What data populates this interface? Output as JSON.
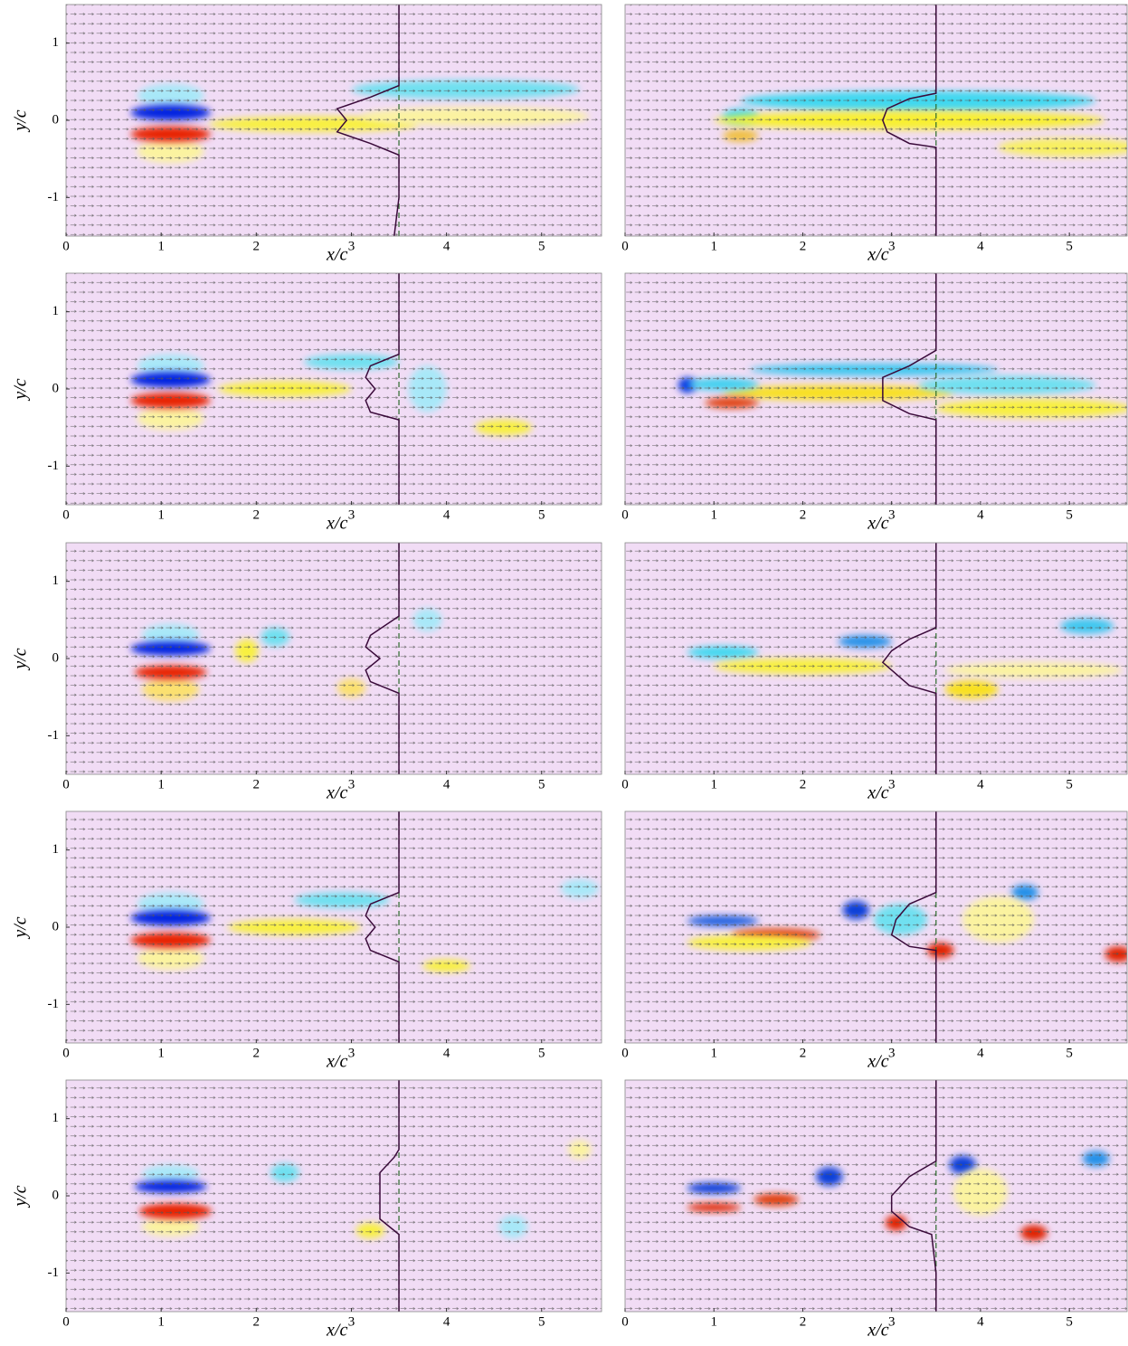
{
  "chart_data": [
    {
      "type": "flow",
      "xlabel": "x/c",
      "ylabel": "y/c",
      "xlim": [
        0,
        5.63
      ],
      "ylim": [
        -1.5,
        1.5
      ],
      "xticks": [
        0,
        1,
        2,
        3,
        4,
        5
      ],
      "yticks": [
        -1,
        0,
        1
      ],
      "reference_x": 3.5,
      "profile": {
        "x": [
          3.45,
          3.5,
          3.5,
          3.2,
          2.85,
          2.95,
          2.85,
          3.2,
          3.5,
          3.5
        ],
        "y": [
          -1.5,
          -1,
          -0.45,
          -0.3,
          -0.15,
          0,
          0.15,
          0.3,
          0.45,
          1.5
        ]
      },
      "blobs": [
        {
          "x": 1.1,
          "y": 0.32,
          "rx": 0.35,
          "ry": 0.15,
          "color": "#a8e8f8"
        },
        {
          "x": 1.1,
          "y": -0.4,
          "rx": 0.35,
          "ry": 0.15,
          "color": "#fbf3a0"
        },
        {
          "x": 2.6,
          "y": -0.05,
          "rx": 1.1,
          "ry": 0.1,
          "color": "#f8f040"
        },
        {
          "x": 4.2,
          "y": 0.4,
          "rx": 1.2,
          "ry": 0.12,
          "color": "#70e0f0"
        },
        {
          "x": 4.3,
          "y": 0.05,
          "rx": 1.2,
          "ry": 0.12,
          "color": "#fbf3a0"
        },
        {
          "x": 1.1,
          "y": 0.1,
          "rx": 0.42,
          "ry": 0.1,
          "color": "#0020e0"
        },
        {
          "x": 1.1,
          "y": -0.18,
          "rx": 0.42,
          "ry": 0.1,
          "color": "#e82000"
        }
      ]
    },
    {
      "type": "flow",
      "xlabel": "x/c",
      "xlim": [
        0,
        5.65
      ],
      "ylim": [
        -1.5,
        1.5
      ],
      "xticks": [
        0,
        1,
        2,
        3,
        4,
        5
      ],
      "reference_x": 3.5,
      "profile": {
        "x": [
          3.5,
          3.5,
          3.5,
          3.2,
          2.95,
          2.9,
          2.95,
          3.2,
          3.5,
          3.5
        ],
        "y": [
          -1.5,
          -1,
          -0.35,
          -0.3,
          -0.15,
          0,
          0.15,
          0.28,
          0.35,
          1.5
        ]
      },
      "blobs": [
        {
          "x": 1.3,
          "y": 0.05,
          "rx": 0.2,
          "ry": 0.1,
          "color": "#40d8f0"
        },
        {
          "x": 1.3,
          "y": -0.2,
          "rx": 0.2,
          "ry": 0.08,
          "color": "#f0c040"
        },
        {
          "x": 3.3,
          "y": 0.25,
          "rx": 2.0,
          "ry": 0.13,
          "color": "#40d8f0"
        },
        {
          "x": 3.2,
          "y": 0,
          "rx": 2.2,
          "ry": 0.12,
          "color": "#f8f030"
        },
        {
          "x": 5,
          "y": -0.35,
          "rx": 0.8,
          "ry": 0.12,
          "color": "#f8f060"
        }
      ]
    },
    {
      "type": "flow",
      "xlabel": "x/c",
      "ylabel": "y/c",
      "xlim": [
        0,
        5.63
      ],
      "ylim": [
        -1.5,
        1.5
      ],
      "xticks": [
        0,
        1,
        2,
        3,
        4,
        5
      ],
      "yticks": [
        -1,
        0,
        1
      ],
      "reference_x": 3.5,
      "profile": {
        "x": [
          3.5,
          3.5,
          3.5,
          3.2,
          3.15,
          3.25,
          3.15,
          3.2,
          3.5,
          3.5
        ],
        "y": [
          -1.5,
          -1,
          -0.4,
          -0.3,
          -0.15,
          0,
          0.15,
          0.3,
          0.45,
          1.5
        ]
      },
      "blobs": [
        {
          "x": 1.1,
          "y": 0.3,
          "rx": 0.35,
          "ry": 0.15,
          "color": "#a8e8f8"
        },
        {
          "x": 1.1,
          "y": -0.38,
          "rx": 0.35,
          "ry": 0.15,
          "color": "#fbf3a0"
        },
        {
          "x": 2.3,
          "y": 0,
          "rx": 0.7,
          "ry": 0.1,
          "color": "#f8f040"
        },
        {
          "x": 3.0,
          "y": 0.35,
          "rx": 0.5,
          "ry": 0.1,
          "color": "#70e0f0"
        },
        {
          "x": 3.8,
          "y": 0,
          "rx": 0.2,
          "ry": 0.3,
          "color": "#a8e8f8"
        },
        {
          "x": 4.6,
          "y": -0.5,
          "rx": 0.3,
          "ry": 0.1,
          "color": "#f8f040"
        },
        {
          "x": 1.1,
          "y": 0.12,
          "rx": 0.42,
          "ry": 0.1,
          "color": "#0020e0"
        },
        {
          "x": 1.1,
          "y": -0.15,
          "rx": 0.42,
          "ry": 0.1,
          "color": "#e82000"
        }
      ]
    },
    {
      "type": "flow",
      "xlabel": "x/c",
      "xlim": [
        0,
        5.65
      ],
      "ylim": [
        -1.5,
        1.5
      ],
      "xticks": [
        0,
        1,
        2,
        3,
        4,
        5
      ],
      "reference_x": 3.5,
      "profile": {
        "x": [
          3.5,
          3.5,
          3.5,
          3.2,
          2.9,
          2.9,
          2.9,
          3.2,
          3.5,
          3.5
        ],
        "y": [
          -1.5,
          -1,
          -0.4,
          -0.32,
          -0.15,
          0,
          0.15,
          0.3,
          0.5,
          1.5
        ]
      },
      "blobs": [
        {
          "x": 0.7,
          "y": 0.05,
          "rx": 0.1,
          "ry": 0.1,
          "color": "#0030e0"
        },
        {
          "x": 2.8,
          "y": 0.25,
          "rx": 1.4,
          "ry": 0.08,
          "color": "#40c8f0"
        },
        {
          "x": 2.4,
          "y": -0.05,
          "rx": 1.3,
          "ry": 0.1,
          "color": "#f8e020"
        },
        {
          "x": 1.2,
          "y": -0.18,
          "rx": 0.3,
          "ry": 0.07,
          "color": "#e04010"
        },
        {
          "x": 1.1,
          "y": 0.06,
          "rx": 0.4,
          "ry": 0.08,
          "color": "#40d0f0"
        },
        {
          "x": 4.3,
          "y": 0.05,
          "rx": 1.0,
          "ry": 0.12,
          "color": "#70e0f0"
        },
        {
          "x": 4.6,
          "y": -0.25,
          "rx": 1.1,
          "ry": 0.12,
          "color": "#f8f040"
        }
      ]
    },
    {
      "type": "flow",
      "xlabel": "x/c",
      "ylabel": "y/c",
      "xlim": [
        0,
        5.63
      ],
      "ylim": [
        -1.5,
        1.5
      ],
      "xticks": [
        0,
        1,
        2,
        3,
        4,
        5
      ],
      "yticks": [
        -1,
        0,
        1
      ],
      "reference_x": 3.5,
      "profile": {
        "x": [
          3.5,
          3.5,
          3.5,
          3.2,
          3.15,
          3.3,
          3.15,
          3.2,
          3.5,
          3.5
        ],
        "y": [
          -1.5,
          -1,
          -0.45,
          -0.3,
          -0.15,
          0,
          0.15,
          0.3,
          0.55,
          1.5
        ]
      },
      "blobs": [
        {
          "x": 1.1,
          "y": 0.3,
          "rx": 0.3,
          "ry": 0.15,
          "color": "#a8e8f8"
        },
        {
          "x": 1.1,
          "y": -0.4,
          "rx": 0.3,
          "ry": 0.15,
          "color": "#fbe070"
        },
        {
          "x": 1.9,
          "y": 0.1,
          "rx": 0.12,
          "ry": 0.15,
          "color": "#f8f040"
        },
        {
          "x": 2.2,
          "y": 0.28,
          "rx": 0.15,
          "ry": 0.12,
          "color": "#70e0f0"
        },
        {
          "x": 3.8,
          "y": 0.5,
          "rx": 0.15,
          "ry": 0.15,
          "color": "#a8e8f8"
        },
        {
          "x": 3.0,
          "y": -0.38,
          "rx": 0.15,
          "ry": 0.12,
          "color": "#fbe070"
        },
        {
          "x": 1.1,
          "y": 0.13,
          "rx": 0.42,
          "ry": 0.09,
          "color": "#0020e0"
        },
        {
          "x": 1.1,
          "y": -0.18,
          "rx": 0.38,
          "ry": 0.09,
          "color": "#e82000"
        }
      ]
    },
    {
      "type": "flow",
      "xlabel": "x/c",
      "xlim": [
        0,
        5.65
      ],
      "ylim": [
        -1.5,
        1.5
      ],
      "xticks": [
        0,
        1,
        2,
        3,
        4,
        5
      ],
      "reference_x": 3.5,
      "profile": {
        "x": [
          3.5,
          3.5,
          3.5,
          3.2,
          3.0,
          2.9,
          3.0,
          3.2,
          3.5,
          3.5
        ],
        "y": [
          -1.5,
          -1,
          -0.45,
          -0.35,
          -0.15,
          -0.05,
          0.1,
          0.25,
          0.4,
          1.5
        ]
      },
      "blobs": [
        {
          "x": 1.1,
          "y": 0.08,
          "rx": 0.4,
          "ry": 0.08,
          "color": "#40d8f0"
        },
        {
          "x": 2.0,
          "y": -0.1,
          "rx": 1.0,
          "ry": 0.1,
          "color": "#f8f040"
        },
        {
          "x": 2.7,
          "y": 0.22,
          "rx": 0.3,
          "ry": 0.08,
          "color": "#2090e8"
        },
        {
          "x": 3.9,
          "y": -0.4,
          "rx": 0.3,
          "ry": 0.12,
          "color": "#f8e020"
        },
        {
          "x": 5.2,
          "y": 0.42,
          "rx": 0.3,
          "ry": 0.1,
          "color": "#40c8f0"
        },
        {
          "x": 4.6,
          "y": -0.15,
          "rx": 1.0,
          "ry": 0.1,
          "color": "#fbf3a0"
        }
      ]
    },
    {
      "type": "flow",
      "xlabel": "x/c",
      "ylabel": "y/c",
      "xlim": [
        0,
        5.63
      ],
      "ylim": [
        -1.5,
        1.5
      ],
      "xticks": [
        0,
        1,
        2,
        3,
        4,
        5
      ],
      "yticks": [
        -1,
        0,
        1
      ],
      "reference_x": 3.5,
      "profile": {
        "x": [
          3.5,
          3.5,
          3.5,
          3.2,
          3.15,
          3.25,
          3.15,
          3.2,
          3.5,
          3.5
        ],
        "y": [
          -1.5,
          -1,
          -0.45,
          -0.3,
          -0.15,
          0,
          0.15,
          0.3,
          0.45,
          1.5
        ]
      },
      "blobs": [
        {
          "x": 1.1,
          "y": 0.3,
          "rx": 0.35,
          "ry": 0.15,
          "color": "#a8e8f8"
        },
        {
          "x": 1.1,
          "y": -0.4,
          "rx": 0.35,
          "ry": 0.15,
          "color": "#fbf3a0"
        },
        {
          "x": 2.4,
          "y": 0,
          "rx": 0.7,
          "ry": 0.1,
          "color": "#f8f040"
        },
        {
          "x": 2.9,
          "y": 0.35,
          "rx": 0.5,
          "ry": 0.1,
          "color": "#70e0f0"
        },
        {
          "x": 4.0,
          "y": -0.5,
          "rx": 0.25,
          "ry": 0.08,
          "color": "#f8f040"
        },
        {
          "x": 5.4,
          "y": 0.5,
          "rx": 0.2,
          "ry": 0.12,
          "color": "#a8e8f8"
        },
        {
          "x": 1.1,
          "y": 0.12,
          "rx": 0.42,
          "ry": 0.1,
          "color": "#0020e0"
        },
        {
          "x": 1.1,
          "y": -0.17,
          "rx": 0.42,
          "ry": 0.1,
          "color": "#e82000"
        }
      ]
    },
    {
      "type": "flow",
      "xlabel": "x/c",
      "xlim": [
        0,
        5.65
      ],
      "ylim": [
        -1.5,
        1.5
      ],
      "xticks": [
        0,
        1,
        2,
        3,
        4,
        5
      ],
      "reference_x": 3.5,
      "profile": {
        "x": [
          3.5,
          3.5,
          3.5,
          3.2,
          3.0,
          3.05,
          3.2,
          3.5,
          3.5
        ],
        "y": [
          -1.5,
          -1,
          -0.3,
          -0.25,
          -0.1,
          0.1,
          0.3,
          0.45,
          1.5
        ]
      },
      "blobs": [
        {
          "x": 1.1,
          "y": 0.08,
          "rx": 0.4,
          "ry": 0.07,
          "color": "#2060e0"
        },
        {
          "x": 1.7,
          "y": -0.1,
          "rx": 0.5,
          "ry": 0.08,
          "color": "#e04010"
        },
        {
          "x": 1.4,
          "y": -0.2,
          "rx": 0.7,
          "ry": 0.1,
          "color": "#f8f040"
        },
        {
          "x": 2.6,
          "y": 0.22,
          "rx": 0.15,
          "ry": 0.12,
          "color": "#1040d8"
        },
        {
          "x": 3.1,
          "y": 0.1,
          "rx": 0.3,
          "ry": 0.2,
          "color": "#70e0f0"
        },
        {
          "x": 3.55,
          "y": -0.3,
          "rx": 0.15,
          "ry": 0.1,
          "color": "#e02000"
        },
        {
          "x": 4.5,
          "y": 0.45,
          "rx": 0.15,
          "ry": 0.1,
          "color": "#2090e8"
        },
        {
          "x": 5.55,
          "y": -0.35,
          "rx": 0.15,
          "ry": 0.1,
          "color": "#e02000"
        },
        {
          "x": 4.2,
          "y": 0.1,
          "rx": 0.4,
          "ry": 0.3,
          "color": "#fbf3a0"
        }
      ]
    },
    {
      "type": "flow",
      "xlabel": "x/c",
      "ylabel": "y/c",
      "xlim": [
        0,
        5.63
      ],
      "ylim": [
        -1.5,
        1.5
      ],
      "xticks": [
        0,
        1,
        2,
        3,
        4,
        5
      ],
      "yticks": [
        -1,
        0,
        1
      ],
      "reference_x": 3.5,
      "profile": {
        "x": [
          3.5,
          3.5,
          3.5,
          3.3,
          3.3,
          3.3,
          3.45,
          3.5,
          3.5
        ],
        "y": [
          -1.5,
          -1,
          -0.5,
          -0.3,
          0,
          0.3,
          0.5,
          0.6,
          1.5
        ]
      },
      "blobs": [
        {
          "x": 1.1,
          "y": 0.28,
          "rx": 0.3,
          "ry": 0.12,
          "color": "#a8e8f8"
        },
        {
          "x": 1.1,
          "y": -0.4,
          "rx": 0.3,
          "ry": 0.12,
          "color": "#fbf3a0"
        },
        {
          "x": 2.3,
          "y": 0.3,
          "rx": 0.15,
          "ry": 0.12,
          "color": "#70e0f0"
        },
        {
          "x": 3.2,
          "y": -0.45,
          "rx": 0.15,
          "ry": 0.1,
          "color": "#f8f040"
        },
        {
          "x": 4.7,
          "y": -0.4,
          "rx": 0.15,
          "ry": 0.15,
          "color": "#a8e8f8"
        },
        {
          "x": 5.4,
          "y": 0.6,
          "rx": 0.12,
          "ry": 0.12,
          "color": "#fbf3a0"
        },
        {
          "x": 1.1,
          "y": 0.12,
          "rx": 0.38,
          "ry": 0.08,
          "color": "#0020e0"
        },
        {
          "x": 1.15,
          "y": -0.2,
          "rx": 0.38,
          "ry": 0.1,
          "color": "#e82000"
        }
      ]
    },
    {
      "type": "flow",
      "xlabel": "x/c",
      "xlim": [
        0,
        5.65
      ],
      "ylim": [
        -1.5,
        1.5
      ],
      "xticks": [
        0,
        1,
        2,
        3,
        4,
        5
      ],
      "reference_x": 3.5,
      "profile": {
        "x": [
          3.5,
          3.5,
          3.45,
          3.2,
          3.0,
          3.0,
          3.2,
          3.5,
          3.5
        ],
        "y": [
          -1.5,
          -1,
          -0.5,
          -0.4,
          -0.2,
          0,
          0.25,
          0.45,
          1.5
        ]
      },
      "blobs": [
        {
          "x": 1.0,
          "y": 0.1,
          "rx": 0.3,
          "ry": 0.07,
          "color": "#1040d8"
        },
        {
          "x": 1.0,
          "y": -0.15,
          "rx": 0.3,
          "ry": 0.06,
          "color": "#e03010"
        },
        {
          "x": 1.7,
          "y": -0.05,
          "rx": 0.25,
          "ry": 0.08,
          "color": "#e04010"
        },
        {
          "x": 2.3,
          "y": 0.25,
          "rx": 0.15,
          "ry": 0.12,
          "color": "#1040d8"
        },
        {
          "x": 3.05,
          "y": -0.35,
          "rx": 0.12,
          "ry": 0.1,
          "color": "#e02000"
        },
        {
          "x": 3.8,
          "y": 0.4,
          "rx": 0.15,
          "ry": 0.12,
          "color": "#1040d8"
        },
        {
          "x": 4.6,
          "y": -0.48,
          "rx": 0.15,
          "ry": 0.1,
          "color": "#e02000"
        },
        {
          "x": 5.3,
          "y": 0.48,
          "rx": 0.15,
          "ry": 0.1,
          "color": "#2090e8"
        },
        {
          "x": 4.0,
          "y": 0.05,
          "rx": 0.3,
          "ry": 0.3,
          "color": "#fbf3a0"
        }
      ]
    }
  ]
}
